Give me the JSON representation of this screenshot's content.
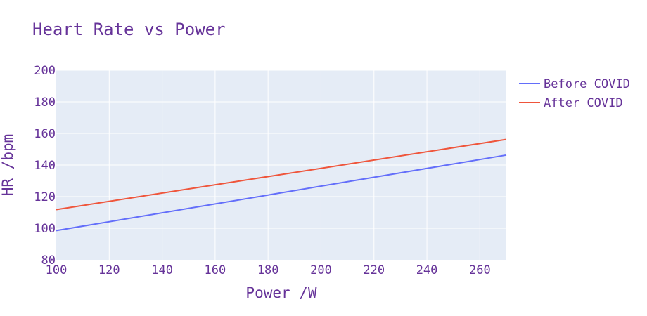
{
  "chart_data": {
    "type": "line",
    "title": "Heart Rate vs Power",
    "xlabel": "Power /W",
    "ylabel": "HR /bpm",
    "xlim": [
      100,
      270
    ],
    "ylim": [
      80,
      200
    ],
    "xticks": [
      100,
      120,
      140,
      160,
      180,
      200,
      220,
      240,
      260
    ],
    "yticks": [
      80,
      100,
      120,
      140,
      160,
      180,
      200
    ],
    "grid": true,
    "legend_position": "top-right",
    "series": [
      {
        "name": "Before COVID",
        "color": "#636efa",
        "x": [
          100,
          270
        ],
        "y": [
          98.5,
          146.3
        ]
      },
      {
        "name": "After COVID",
        "color": "#ef553b",
        "x": [
          100,
          270
        ],
        "y": [
          111.8,
          156.2
        ]
      }
    ]
  },
  "colors": {
    "plot_background": "#e5ecf6",
    "grid": "#ffffff",
    "text": "#663399"
  }
}
